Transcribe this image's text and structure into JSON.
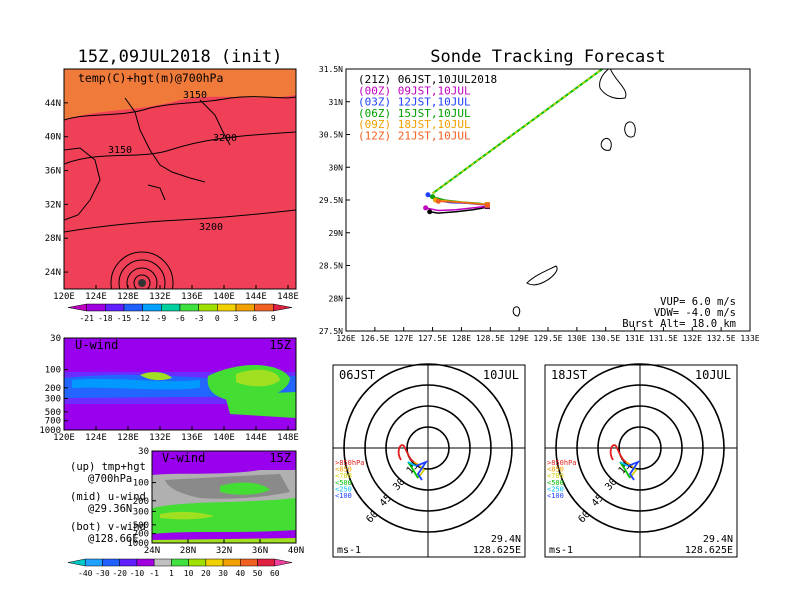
{
  "chart_data": [
    {
      "type": "heatmap",
      "title": "15Z,09JUL2018 (init)",
      "subtitle": "temp(C)+hgt(m)@700hPa",
      "x_ticks": [
        "120E",
        "124E",
        "128E",
        "132E",
        "136E",
        "140E",
        "144E",
        "148E"
      ],
      "y_ticks": [
        "24N",
        "28N",
        "32N",
        "36N",
        "40N",
        "44N"
      ],
      "xlim": [
        120,
        150
      ],
      "ylim": [
        22,
        48
      ],
      "contour_labels": [
        "3150",
        "3200",
        "3150",
        "3200"
      ],
      "colorbar_ticks": [
        "-21",
        "-18",
        "-15",
        "-12",
        "-9",
        "-6",
        "-3",
        "0",
        "3",
        "6",
        "9"
      ],
      "colorbar_colors": [
        "#c000c0",
        "#a000e0",
        "#6020ff",
        "#2060ff",
        "#00a0ff",
        "#00d0a0",
        "#40e040",
        "#a0e000",
        "#f0d000",
        "#f0a000",
        "#f06020",
        "#e02040"
      ],
      "fill_color": "#f04058",
      "fill_color_north": "#f07a3a"
    },
    {
      "type": "heatmap",
      "title": "U-wind",
      "time_label": "15Z",
      "x_ticks": [
        "120E",
        "124E",
        "128E",
        "132E",
        "136E",
        "140E",
        "144E",
        "148E"
      ],
      "y_ticks": [
        "30",
        "100",
        "200",
        "300",
        "500",
        "700",
        "1000"
      ],
      "background_color": "#9900ee"
    },
    {
      "type": "heatmap",
      "title": "V-wind",
      "time_label": "15Z",
      "x_ticks": [
        "24N",
        "28N",
        "32N",
        "36N",
        "40N"
      ],
      "y_ticks": [
        "30",
        "100",
        "200",
        "300",
        "500",
        "700",
        "1000"
      ],
      "background_color": "#9900ee",
      "colorbar_ticks": [
        "-40",
        "-30",
        "-20",
        "-10",
        "-1",
        "1",
        "10",
        "20",
        "30",
        "40",
        "50",
        "60"
      ],
      "colorbar_colors": [
        "#00c8c8",
        "#20a0ff",
        "#2060ff",
        "#6020ff",
        "#a000e0",
        "#c0c0c0",
        "#40e040",
        "#a0e000",
        "#f0d000",
        "#f0a000",
        "#f06020",
        "#e02040",
        "#f040a0"
      ]
    },
    {
      "type": "line",
      "title": "Sonde Tracking Forecast",
      "x_ticks": [
        "126E",
        "126.5E",
        "127E",
        "127.5E",
        "128E",
        "128.5E",
        "129E",
        "129.5E",
        "130E",
        "130.5E",
        "131E",
        "131.5E",
        "132E",
        "132.5E",
        "133E"
      ],
      "y_ticks": [
        "27.5N",
        "28N",
        "28.5N",
        "29N",
        "29.5N",
        "30N",
        "30.5N",
        "31N",
        "31.5N"
      ],
      "xlim": [
        126,
        133
      ],
      "ylim": [
        27.5,
        31.5
      ],
      "series": [
        {
          "name": "(21Z) 06JST,10JUL2018",
          "color": "#000000",
          "points": [
            [
              127.45,
              29.32
            ],
            [
              127.6,
              29.3
            ],
            [
              127.9,
              29.32
            ],
            [
              128.2,
              29.35
            ],
            [
              128.38,
              29.38
            ],
            [
              128.45,
              29.4
            ]
          ]
        },
        {
          "name": "(00Z) 09JST,10JUL",
          "color": "#c000c0",
          "points": [
            [
              127.38,
              29.38
            ],
            [
              127.6,
              29.34
            ],
            [
              127.9,
              29.35
            ],
            [
              128.2,
              29.38
            ],
            [
              128.4,
              29.4
            ],
            [
              128.45,
              29.41
            ]
          ]
        },
        {
          "name": "(03Z) 12JST,10JUL",
          "color": "#2040ff",
          "points": [
            [
              127.42,
              29.58
            ],
            [
              127.55,
              29.5
            ],
            [
              127.8,
              29.46
            ],
            [
              128.1,
              29.45
            ],
            [
              128.35,
              29.43
            ],
            [
              128.45,
              29.42
            ]
          ]
        },
        {
          "name": "(06Z) 15JST,10JUL",
          "color": "#00a000",
          "points": [
            [
              127.5,
              29.55
            ],
            [
              127.7,
              29.5
            ],
            [
              128.0,
              29.47
            ],
            [
              128.3,
              29.45
            ],
            [
              128.45,
              29.43
            ]
          ]
        },
        {
          "name": "(09Z) 18JST,10JUL",
          "color": "#f0a000",
          "points": [
            [
              127.55,
              29.5
            ],
            [
              127.8,
              29.48
            ],
            [
              128.1,
              29.46
            ],
            [
              128.35,
              29.44
            ],
            [
              128.45,
              29.43
            ]
          ]
        },
        {
          "name": "(12Z) 21JST,10JUL",
          "color": "#f06020",
          "points": [
            [
              127.6,
              29.48
            ],
            [
              127.85,
              29.47
            ],
            [
              128.15,
              29.45
            ],
            [
              128.4,
              29.43
            ],
            [
              128.45,
              29.42
            ]
          ]
        }
      ],
      "ascent_line": {
        "from": [
          127.5,
          29.6
        ],
        "to": [
          130.75,
          31.7
        ],
        "colors": [
          "#00c000",
          "#f0d000"
        ]
      },
      "params": [
        "VUP= 6.0 m/s",
        "VDW= -4.0 m/s",
        "Burst Alt= 18.0 km"
      ]
    },
    {
      "type": "scatter",
      "title": "06JST",
      "date_label": "10JUL",
      "ring_labels": [
        "15",
        "30",
        "45",
        "60"
      ],
      "legend": [
        ">850hPa",
        "<850",
        "<700",
        "<500",
        "<250",
        "<100"
      ],
      "legend_colors": [
        "#e02020",
        "#f0a000",
        "#d0d000",
        "#00c000",
        "#00c0ff",
        "#2040ff"
      ],
      "unit": "ms-1",
      "location": [
        "29.4N",
        "128.625E"
      ]
    },
    {
      "type": "scatter",
      "title": "18JST",
      "date_label": "10JUL",
      "ring_labels": [
        "15",
        "30",
        "45",
        "60"
      ],
      "legend": [
        ">850hPa",
        "<850",
        "<700",
        "<500",
        "<250",
        "<100"
      ],
      "legend_colors": [
        "#e02020",
        "#f0a000",
        "#d0d000",
        "#00c000",
        "#00c0ff",
        "#2040ff"
      ],
      "unit": "ms-1",
      "location": [
        "29.4N",
        "128.625E"
      ]
    }
  ],
  "side_text": {
    "up": "(up) tmp+hgt",
    "up2": "@700hPa",
    "mid": "(mid) u-wind",
    "mid2": "@29.36N",
    "bot": "(bot) v-wind",
    "bot2": "@128.66E"
  }
}
